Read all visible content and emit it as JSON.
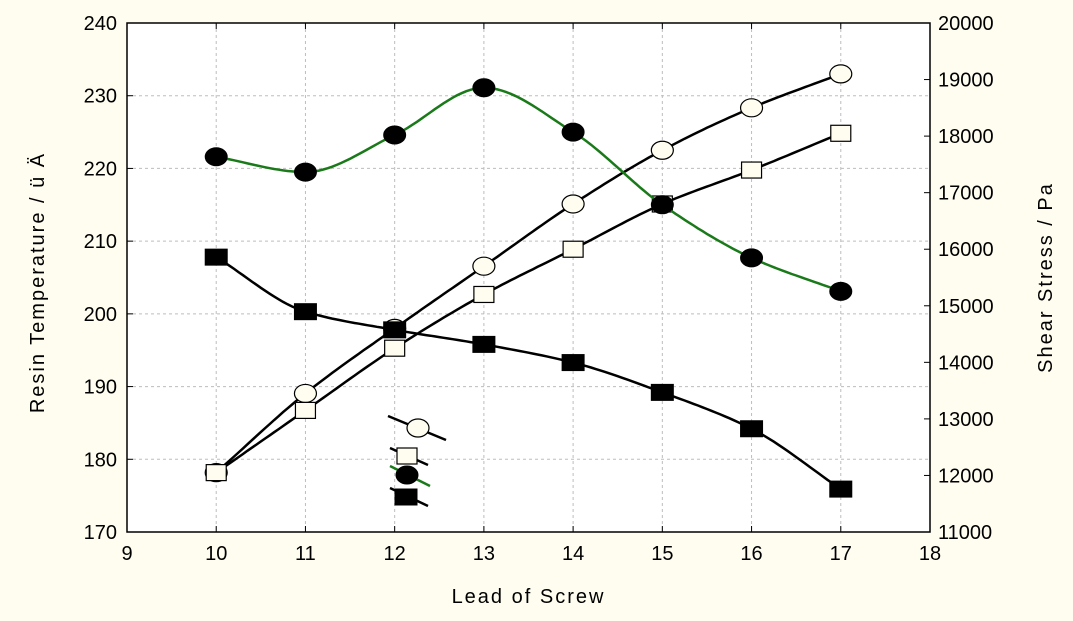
{
  "chart_data": {
    "type": "line",
    "title": "",
    "xlabel": "Lead of Screw",
    "ylabel": "Resin Temperature / ü Ä",
    "y2label": "Shear Stress / Pa",
    "xlim": [
      9,
      18
    ],
    "ylim": [
      170,
      240
    ],
    "y2lim": [
      11000,
      20000
    ],
    "x_ticks": [
      9,
      10,
      11,
      12,
      13,
      14,
      15,
      16,
      17,
      18
    ],
    "y_ticks": [
      170,
      180,
      190,
      200,
      210,
      220,
      230,
      240
    ],
    "y2_ticks": [
      11000,
      12000,
      13000,
      14000,
      15000,
      16000,
      17000,
      18000,
      19000,
      20000
    ],
    "grid": true,
    "legend_position": "lower-center",
    "series": [
      {
        "marker": "open-circle",
        "axis": "right",
        "line_color": "#000000",
        "x": [
          10,
          11,
          12,
          13,
          14,
          15,
          16,
          17
        ],
        "values": [
          12050,
          13450,
          14600,
          15700,
          16800,
          17750,
          18500,
          19100
        ]
      },
      {
        "marker": "open-square",
        "axis": "right",
        "line_color": "#000000",
        "x": [
          10,
          11,
          12,
          13,
          14,
          15,
          16,
          17
        ],
        "values": [
          12050,
          13150,
          14250,
          15200,
          16000,
          16800,
          17400,
          18050
        ]
      },
      {
        "marker": "filled-circle",
        "axis": "left",
        "line_color": "#1a7a1a",
        "x": [
          10,
          11,
          12,
          13,
          14,
          15,
          16,
          17
        ],
        "values": [
          221.6,
          219.5,
          224.6,
          231.1,
          225.0,
          215.0,
          207.7,
          203.1
        ]
      },
      {
        "marker": "filled-square",
        "axis": "left",
        "line_color": "#000000",
        "x": [
          10,
          11,
          12,
          13,
          14,
          15,
          16,
          17
        ],
        "values": [
          207.8,
          200.3,
          197.8,
          195.8,
          193.3,
          189.2,
          184.2,
          175.9
        ]
      }
    ]
  }
}
